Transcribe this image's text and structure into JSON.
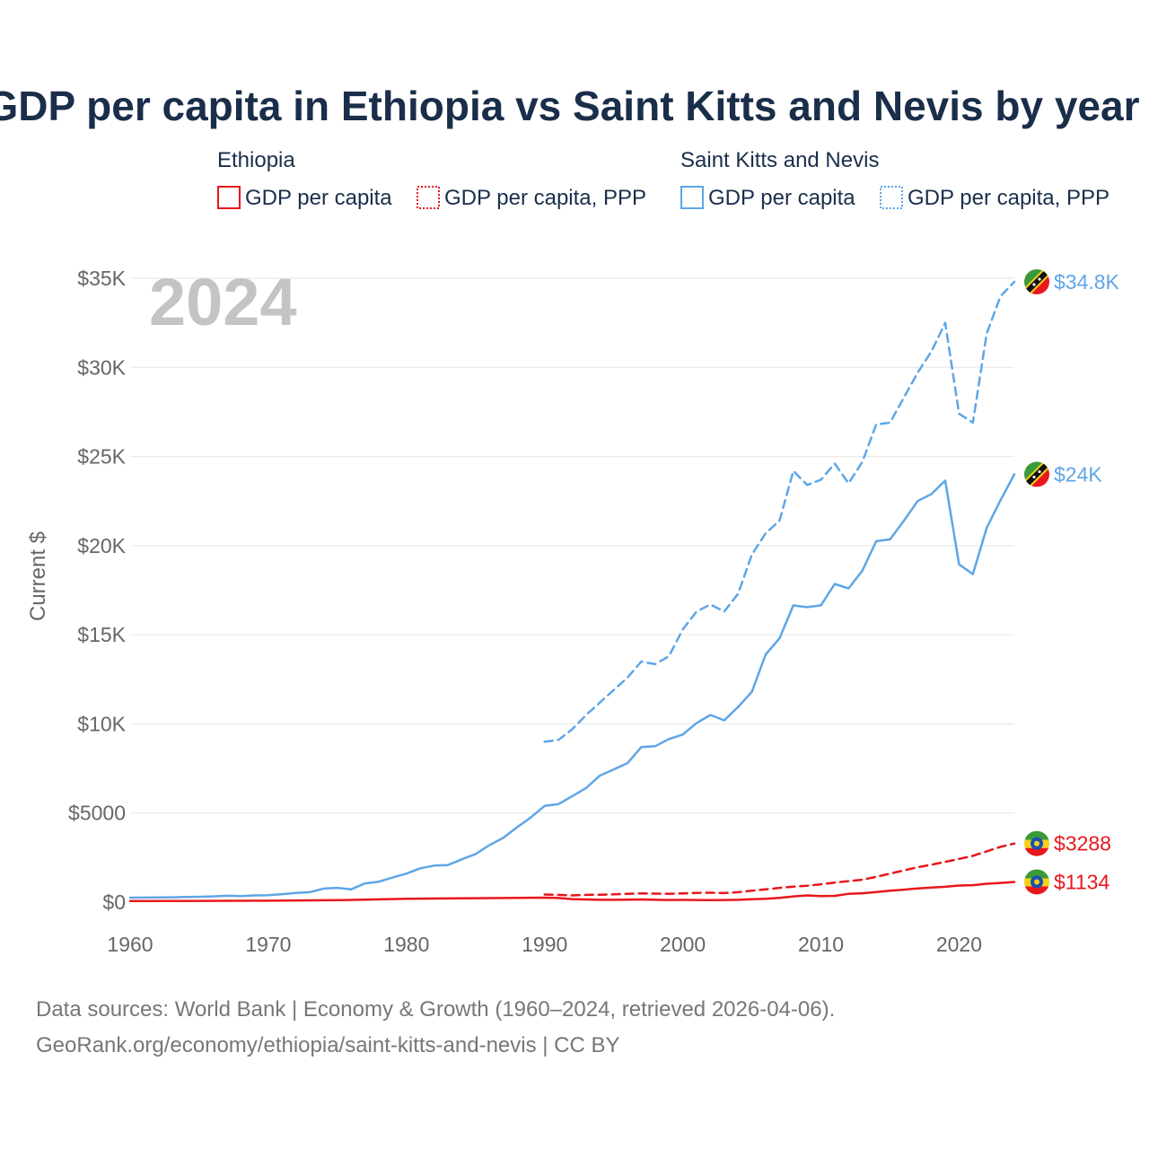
{
  "colors": {
    "ethiopia": "#e8171c",
    "skn": "#5ea6e6",
    "title": "#1a2e4a",
    "axis_text": "#666666",
    "watermark": "#c4c4c4"
  },
  "year_watermark": "2024",
  "chart_data": {
    "type": "line",
    "title": "GDP per capita in Ethiopia vs Saint Kitts and Nevis by year",
    "xlabel": "",
    "ylabel": "Current $",
    "xlim": [
      1960,
      2024
    ],
    "ylim": [
      0,
      35000
    ],
    "x_ticks": [
      1960,
      1970,
      1980,
      1990,
      2000,
      2010,
      2020
    ],
    "x_tick_labels": [
      "1960",
      "1970",
      "1980",
      "1990",
      "2000",
      "2010",
      "2020"
    ],
    "y_ticks": [
      0,
      5000,
      10000,
      15000,
      20000,
      25000,
      30000,
      35000
    ],
    "y_tick_labels": [
      "$0",
      "$5000",
      "$10K",
      "$15K",
      "$20K",
      "$25K",
      "$30K",
      "$35K"
    ],
    "legend": {
      "groups": [
        {
          "title": "Ethiopia",
          "items": [
            "GDP per capita",
            "GDP per capita, PPP"
          ]
        },
        {
          "title": "Saint Kitts and Nevis",
          "items": [
            "GDP per capita",
            "GDP per capita, PPP"
          ]
        }
      ]
    },
    "series": [
      {
        "name": "Saint Kitts and Nevis GDP per capita, PPP",
        "country": "skn",
        "dash": "dashed",
        "end_label": "$34.8K",
        "x": [
          1990,
          1991,
          1992,
          1993,
          1994,
          1995,
          1996,
          1997,
          1998,
          1999,
          2000,
          2001,
          2002,
          2003,
          2004,
          2005,
          2006,
          2007,
          2008,
          2009,
          2010,
          2011,
          2012,
          2013,
          2014,
          2015,
          2016,
          2017,
          2018,
          2019,
          2020,
          2021,
          2022,
          2023,
          2024
        ],
        "values": [
          9000,
          9100,
          9700,
          10500,
          11200,
          11900,
          12600,
          13500,
          13350,
          13800,
          15300,
          16300,
          16700,
          16300,
          17300,
          19500,
          20700,
          21400,
          24200,
          23400,
          23700,
          24600,
          23500,
          24700,
          26800,
          26900,
          28300,
          29700,
          30900,
          32500,
          27400,
          26900,
          31900,
          34000,
          34800
        ]
      },
      {
        "name": "Saint Kitts and Nevis GDP per capita",
        "country": "skn",
        "dash": "solid",
        "end_label": "$24K",
        "x": [
          1960,
          1961,
          1962,
          1963,
          1964,
          1965,
          1966,
          1967,
          1968,
          1969,
          1970,
          1971,
          1972,
          1973,
          1974,
          1975,
          1976,
          1977,
          1978,
          1979,
          1980,
          1981,
          1982,
          1983,
          1984,
          1985,
          1986,
          1987,
          1988,
          1989,
          1990,
          1991,
          1992,
          1993,
          1994,
          1995,
          1996,
          1997,
          1998,
          1999,
          2000,
          2001,
          2002,
          2003,
          2004,
          2005,
          2006,
          2007,
          2008,
          2009,
          2010,
          2011,
          2012,
          2013,
          2014,
          2015,
          2016,
          2017,
          2018,
          2019,
          2020,
          2021,
          2022,
          2023,
          2024
        ],
        "values": [
          250,
          255,
          260,
          270,
          285,
          300,
          320,
          360,
          340,
          380,
          390,
          450,
          520,
          560,
          760,
          800,
          720,
          1050,
          1150,
          1380,
          1600,
          1900,
          2050,
          2080,
          2400,
          2700,
          3200,
          3600,
          4200,
          4750,
          5400,
          5500,
          5950,
          6400,
          7100,
          7450,
          7800,
          8700,
          8750,
          9150,
          9400,
          10050,
          10500,
          10200,
          10950,
          11800,
          13900,
          14800,
          16650,
          16550,
          16650,
          17850,
          17600,
          18600,
          20250,
          20350,
          21400,
          22500,
          22900,
          23650,
          18950,
          18400,
          21000,
          22550,
          24000
        ]
      },
      {
        "name": "Ethiopia GDP per capita, PPP",
        "country": "ethiopia",
        "dash": "dashed",
        "end_label": "$3288",
        "x": [
          1990,
          1991,
          1992,
          1993,
          1994,
          1995,
          1996,
          1997,
          1998,
          1999,
          2000,
          2001,
          2002,
          2003,
          2004,
          2005,
          2006,
          2007,
          2008,
          2009,
          2010,
          2011,
          2012,
          2013,
          2014,
          2015,
          2016,
          2017,
          2018,
          2019,
          2020,
          2021,
          2022,
          2023,
          2024
        ],
        "values": [
          430,
          410,
          380,
          410,
          420,
          440,
          470,
          490,
          480,
          470,
          490,
          520,
          530,
          510,
          560,
          640,
          720,
          800,
          870,
          920,
          1000,
          1100,
          1180,
          1260,
          1420,
          1600,
          1780,
          1960,
          2100,
          2260,
          2420,
          2600,
          2850,
          3100,
          3288
        ]
      },
      {
        "name": "Ethiopia GDP per capita",
        "country": "ethiopia",
        "dash": "solid",
        "end_label": "$1134",
        "x": [
          1960,
          1965,
          1970,
          1975,
          1980,
          1985,
          1990,
          1991,
          1992,
          1993,
          1994,
          1995,
          1996,
          1997,
          1998,
          1999,
          2000,
          2001,
          2002,
          2003,
          2004,
          2005,
          2006,
          2007,
          2008,
          2009,
          2010,
          2011,
          2012,
          2013,
          2014,
          2015,
          2016,
          2017,
          2018,
          2019,
          2020,
          2021,
          2022,
          2023,
          2024
        ],
        "values": [
          60,
          70,
          80,
          110,
          190,
          220,
          250,
          230,
          170,
          150,
          130,
          130,
          140,
          150,
          130,
          120,
          125,
          120,
          110,
          120,
          130,
          160,
          190,
          240,
          320,
          380,
          340,
          350,
          470,
          500,
          570,
          640,
          700,
          770,
          820,
          860,
          930,
          950,
          1030,
          1080,
          1134
        ]
      }
    ]
  },
  "source": {
    "line1": "Data sources: World Bank | Economy & Growth (1960–2024, retrieved 2026-04-06).",
    "line2": "GeoRank.org/economy/ethiopia/saint-kitts-and-nevis | CC BY"
  }
}
